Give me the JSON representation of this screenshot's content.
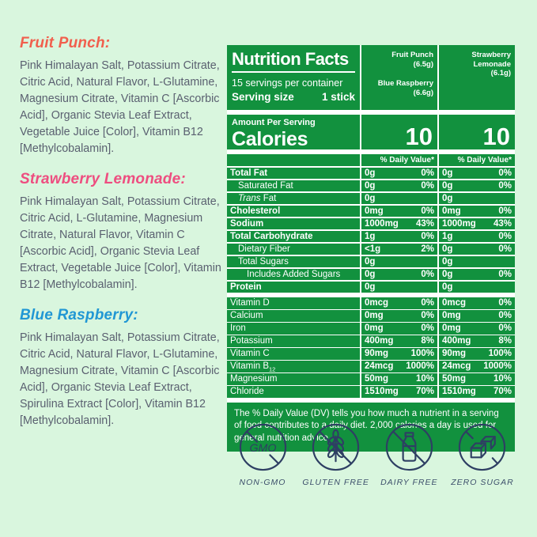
{
  "colors": {
    "page_background": "#d9f6de",
    "panel_green": "#12913e",
    "fruit_punch_accent": "#f15f4d",
    "strawberry_accent": "#ee4e80",
    "blue_raspberry_accent": "#2197d4",
    "body_text": "#5a6070",
    "badge_icon_navy": "#2e3f63"
  },
  "ingredients": [
    {
      "flavor": "Fruit Punch:",
      "text": "Pink Himalayan Salt, Potassium Citrate, Citric Acid, Natural Flavor, L-Glutamine, Magnesium Citrate, Vitamin C [Ascorbic Acid], Organic Stevia Leaf Extract, Vegetable Juice [Color], Vitamin B12 [Methylcobalamin]."
    },
    {
      "flavor": "Strawberry Lemonade:",
      "text": "Pink Himalayan Salt, Potassium Citrate, Citric Acid, L-Glutamine, Magnesium Citrate, Natural Flavor, Vitamin C [Ascorbic Acid], Organic Stevia Leaf Extract, Vegetable Juice [Color], Vitamin B12 [Methylcobalamin]."
    },
    {
      "flavor": "Blue Raspberry:",
      "text": "Pink Himalayan Salt, Potassium Citrate, Citric Acid, Natural Flavor, L-Glutamine, Magnesium Citrate, Vitamin C [Ascorbic Acid], Organic Stevia Leaf Extract, Spirulina Extract [Color], Vitamin B12 [Methylcobalamin]."
    }
  ],
  "nutrition": {
    "title": "Nutrition Facts",
    "servings_per_container": "15 servings per container",
    "serving_size_label": "Serving size",
    "serving_size_value": "1 stick",
    "columns": [
      {
        "flavors": [
          {
            "name": "Fruit Punch",
            "weight": "(6.5g)"
          },
          {
            "name": "Blue Raspberry",
            "weight": "(6.6g)"
          }
        ]
      },
      {
        "flavors": [
          {
            "name": "Strawberry Lemonade",
            "weight": "(6.1g)"
          }
        ]
      }
    ],
    "amount_per_serving": "Amount Per Serving",
    "calories_label": "Calories",
    "calories": [
      "10",
      "10"
    ],
    "daily_value_header": "% Daily Value*",
    "rows": [
      {
        "label": "Total Fat",
        "bold": true,
        "indent": 0,
        "section": 1,
        "values": [
          [
            "0g",
            "0%"
          ],
          [
            "0g",
            "0%"
          ]
        ]
      },
      {
        "label": "Saturated Fat",
        "bold": false,
        "indent": 1,
        "section": 1,
        "values": [
          [
            "0g",
            "0%"
          ],
          [
            "0g",
            "0%"
          ]
        ]
      },
      {
        "label": "Trans Fat",
        "bold": false,
        "indent": 1,
        "italic_first": true,
        "section": 1,
        "values": [
          [
            "0g",
            ""
          ],
          [
            "0g",
            ""
          ]
        ]
      },
      {
        "label": "Cholesterol",
        "bold": true,
        "indent": 0,
        "section": 1,
        "values": [
          [
            "0mg",
            "0%"
          ],
          [
            "0mg",
            "0%"
          ]
        ]
      },
      {
        "label": "Sodium",
        "bold": true,
        "indent": 0,
        "section": 1,
        "values": [
          [
            "1000mg",
            "43%"
          ],
          [
            "1000mg",
            "43%"
          ]
        ]
      },
      {
        "label": "Total Carbohydrate",
        "bold": true,
        "indent": 0,
        "section": 1,
        "values": [
          [
            "1g",
            "0%"
          ],
          [
            "1g",
            "0%"
          ]
        ]
      },
      {
        "label": "Dietary Fiber",
        "bold": false,
        "indent": 1,
        "section": 1,
        "values": [
          [
            "<1g",
            "2%"
          ],
          [
            "0g",
            "0%"
          ]
        ]
      },
      {
        "label": "Total Sugars",
        "bold": false,
        "indent": 1,
        "section": 1,
        "values": [
          [
            "0g",
            ""
          ],
          [
            "0g",
            ""
          ]
        ]
      },
      {
        "label": "Includes Added Sugars",
        "bold": false,
        "indent": 2,
        "section": 1,
        "values": [
          [
            "0g",
            "0%"
          ],
          [
            "0g",
            "0%"
          ]
        ]
      },
      {
        "label": "Protein",
        "bold": true,
        "indent": 0,
        "section": 1,
        "values": [
          [
            "0g",
            ""
          ],
          [
            "0g",
            ""
          ]
        ]
      },
      {
        "label": "Vitamin D",
        "bold": false,
        "indent": 0,
        "section": 2,
        "values": [
          [
            "0mcg",
            "0%"
          ],
          [
            "0mcg",
            "0%"
          ]
        ]
      },
      {
        "label": "Calcium",
        "bold": false,
        "indent": 0,
        "section": 2,
        "values": [
          [
            "0mg",
            "0%"
          ],
          [
            "0mg",
            "0%"
          ]
        ]
      },
      {
        "label": "Iron",
        "bold": false,
        "indent": 0,
        "section": 2,
        "values": [
          [
            "0mg",
            "0%"
          ],
          [
            "0mg",
            "0%"
          ]
        ]
      },
      {
        "label": "Potassium",
        "bold": false,
        "indent": 0,
        "section": 2,
        "values": [
          [
            "400mg",
            "8%"
          ],
          [
            "400mg",
            "8%"
          ]
        ]
      },
      {
        "label": "Vitamin C",
        "bold": false,
        "indent": 0,
        "section": 2,
        "values": [
          [
            "90mg",
            "100%"
          ],
          [
            "90mg",
            "100%"
          ]
        ]
      },
      {
        "label": "Vitamin B12",
        "label_base": "Vitamin B",
        "subscript": "12",
        "bold": false,
        "indent": 0,
        "section": 2,
        "values": [
          [
            "24mcg",
            "1000%"
          ],
          [
            "24mcg",
            "1000%"
          ]
        ]
      },
      {
        "label": "Magnesium",
        "bold": false,
        "indent": 0,
        "section": 2,
        "values": [
          [
            "50mg",
            "10%"
          ],
          [
            "50mg",
            "10%"
          ]
        ]
      },
      {
        "label": "Chloride",
        "bold": false,
        "indent": 0,
        "section": 2,
        "values": [
          [
            "1510mg",
            "70%"
          ],
          [
            "1510mg",
            "70%"
          ]
        ]
      }
    ],
    "footnote": "The % Daily Value (DV) tells you how much a nutrient in a serving of food contributes to a daily diet. 2,000 calories a day is used for general nutrition advice."
  },
  "badges": [
    {
      "label": "NON-GMO",
      "icon": "non-gmo-icon",
      "icon_text": "GMO"
    },
    {
      "label": "GLUTEN FREE",
      "icon": "gluten-free-icon"
    },
    {
      "label": "DAIRY FREE",
      "icon": "dairy-free-icon"
    },
    {
      "label": "ZERO SUGAR",
      "icon": "zero-sugar-icon"
    }
  ]
}
